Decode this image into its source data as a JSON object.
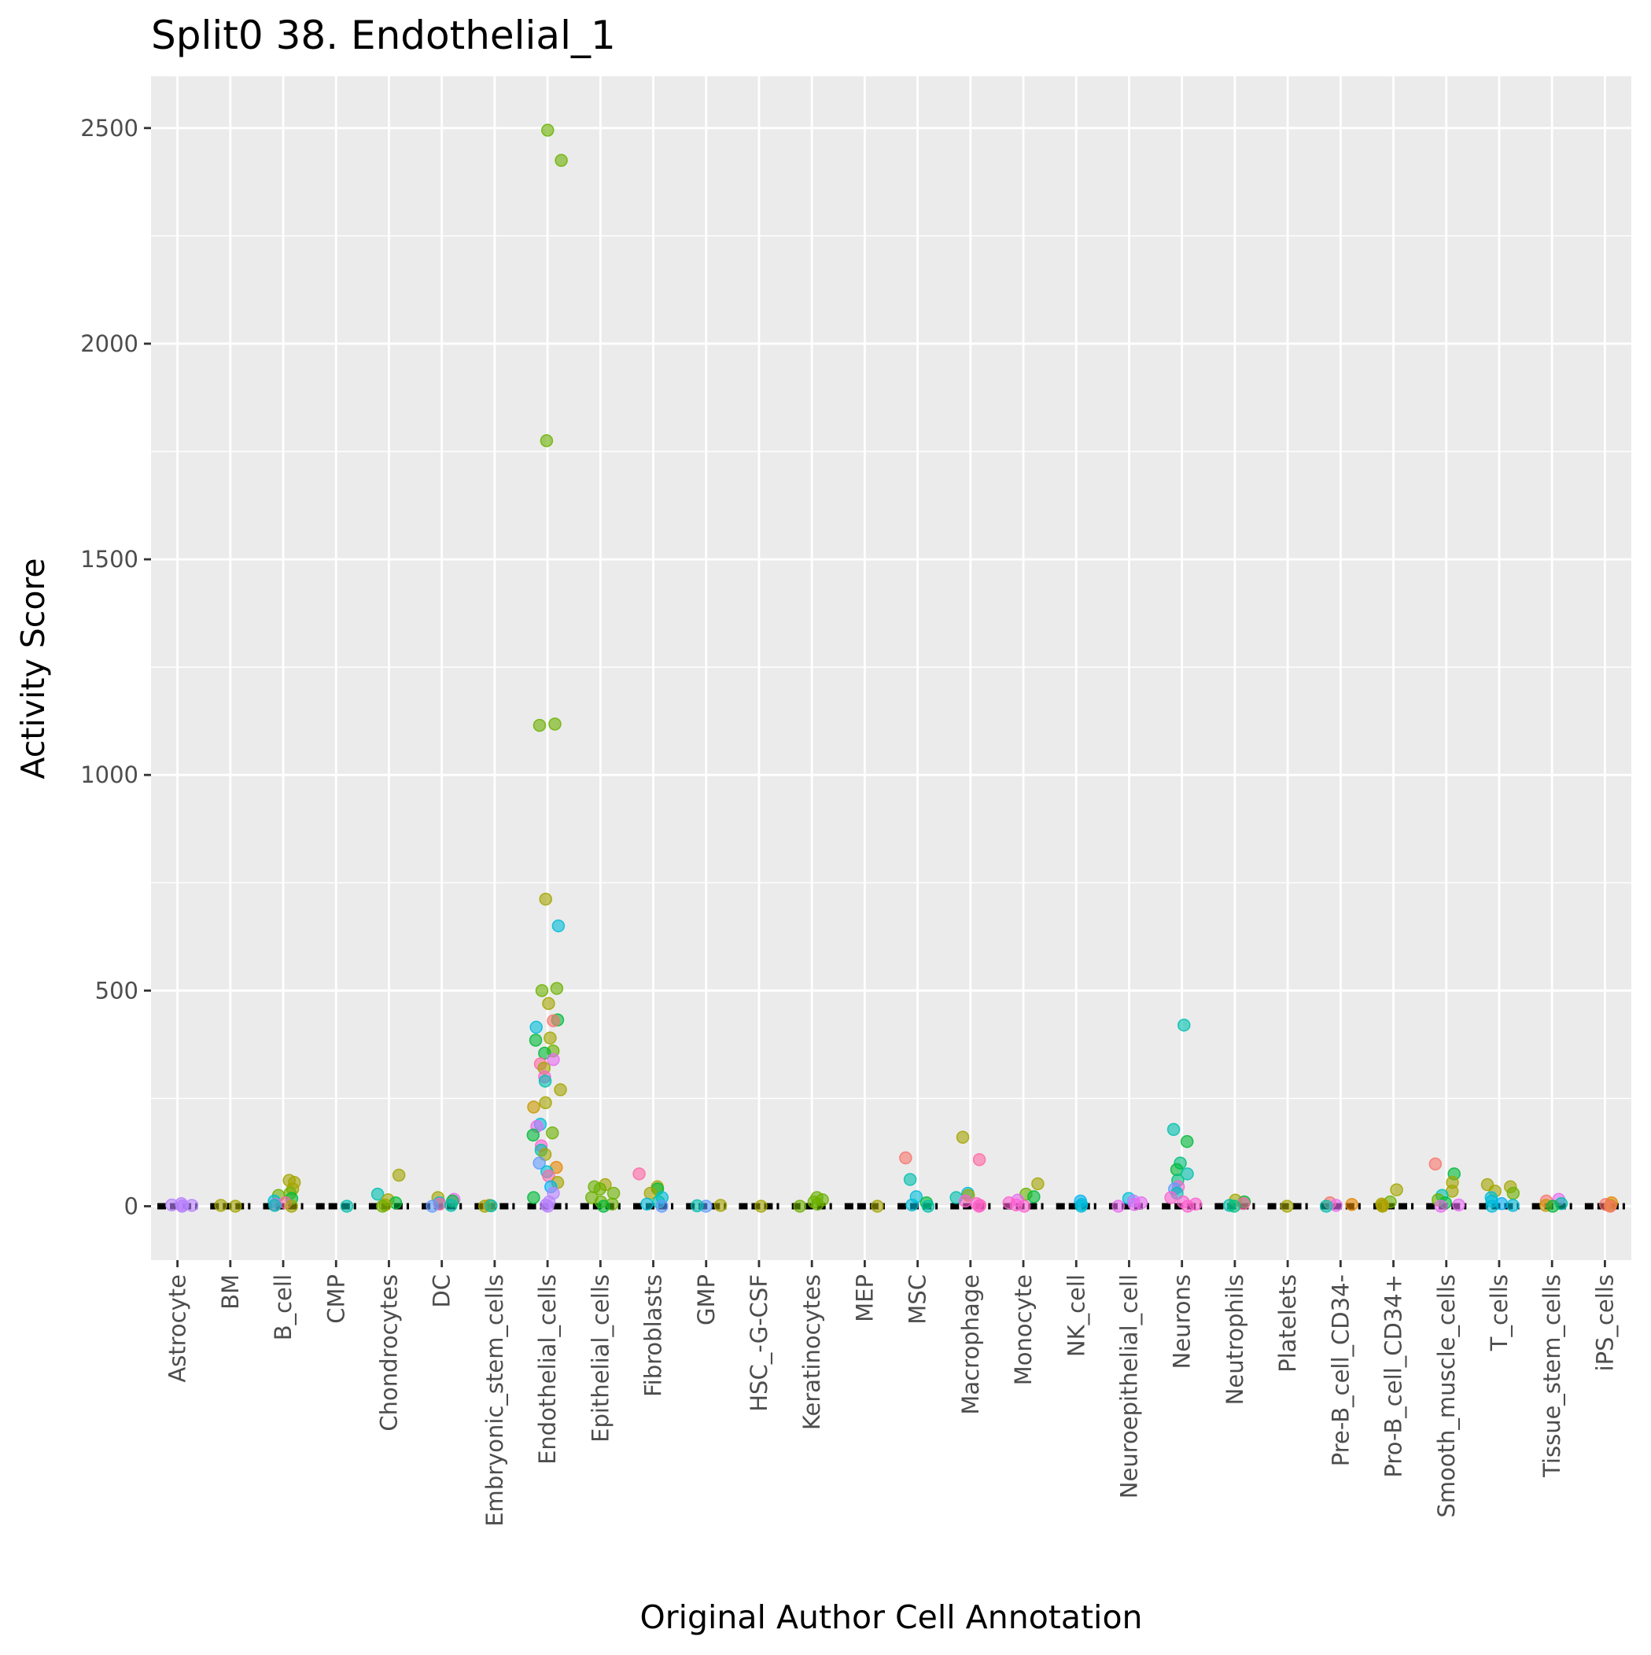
{
  "chart_data": {
    "type": "scatter",
    "title": "Split0 38. Endothelial_1",
    "xlabel": "Original Author Cell Annotation",
    "ylabel": "Activity Score",
    "ylim": [
      -125,
      2620
    ],
    "y_ticks": [
      0,
      500,
      1000,
      1500,
      2000,
      2500
    ],
    "y_tick_labels": [
      "0",
      "500",
      "1000",
      "1500",
      "2000",
      "2500"
    ],
    "grid": true,
    "legend": "none",
    "categories": [
      "Astrocyte",
      "BM",
      "B_cell",
      "CMP",
      "Chondrocytes",
      "DC",
      "Embryonic_stem_cells",
      "Endothelial_cells",
      "Epithelial_cells",
      "Fibroblasts",
      "GMP",
      "HSC_-G-CSF",
      "Keratinocytes",
      "MEP",
      "MSC",
      "Macrophage",
      "Monocyte",
      "NK_cell",
      "Neuroepithelial_cell",
      "Neurons",
      "Neutrophils",
      "Platelets",
      "Pre-B_cell_CD34-",
      "Pro-B_cell_CD34+",
      "Smooth_muscle_cells",
      "T_cells",
      "Tissue_stem_cells",
      "iPS_cells"
    ],
    "palette": [
      "#F8766D",
      "#E58700",
      "#C99800",
      "#A3A500",
      "#6BB100",
      "#00BA38",
      "#00BF7D",
      "#00C0AF",
      "#00BCD8",
      "#00B0F6",
      "#619CFF",
      "#B983FF",
      "#E76BF3",
      "#FD61D1",
      "#FF67A4"
    ],
    "points": [
      {
        "category": "Astrocyte",
        "y": 0,
        "color": "#B983FF"
      },
      {
        "category": "Astrocyte",
        "y": 3,
        "color": "#B983FF"
      },
      {
        "category": "Astrocyte",
        "y": 6,
        "color": "#B983FF"
      },
      {
        "category": "Astrocyte",
        "y": 2,
        "color": "#B983FF"
      },
      {
        "category": "Astrocyte",
        "y": 1,
        "color": "#B983FF"
      },
      {
        "category": "BM",
        "y": 0,
        "color": "#A3A500"
      },
      {
        "category": "BM",
        "y": 2,
        "color": "#A3A500"
      },
      {
        "category": "B_cell",
        "y": 55,
        "color": "#A3A500"
      },
      {
        "category": "B_cell",
        "y": 60,
        "color": "#A3A500"
      },
      {
        "category": "B_cell",
        "y": 40,
        "color": "#A3A500"
      },
      {
        "category": "B_cell",
        "y": 30,
        "color": "#6BB100"
      },
      {
        "category": "B_cell",
        "y": 25,
        "color": "#6BB100"
      },
      {
        "category": "B_cell",
        "y": 18,
        "color": "#00BA38"
      },
      {
        "category": "B_cell",
        "y": 12,
        "color": "#00BCD8"
      },
      {
        "category": "B_cell",
        "y": 8,
        "color": "#FF67A4"
      },
      {
        "category": "B_cell",
        "y": 4,
        "color": "#E76BF3"
      },
      {
        "category": "B_cell",
        "y": 2,
        "color": "#00C0AF"
      },
      {
        "category": "B_cell",
        "y": 0,
        "color": "#A3A500"
      },
      {
        "category": "CMP",
        "y": 0,
        "color": "#00C0AF"
      },
      {
        "category": "Chondrocytes",
        "y": 72,
        "color": "#A3A500"
      },
      {
        "category": "Chondrocytes",
        "y": 28,
        "color": "#00C0AF"
      },
      {
        "category": "Chondrocytes",
        "y": 15,
        "color": "#A3A500"
      },
      {
        "category": "Chondrocytes",
        "y": 8,
        "color": "#00BA38"
      },
      {
        "category": "Chondrocytes",
        "y": 3,
        "color": "#A3A500"
      },
      {
        "category": "Chondrocytes",
        "y": 0,
        "color": "#6BB100"
      },
      {
        "category": "DC",
        "y": 20,
        "color": "#A3A500"
      },
      {
        "category": "DC",
        "y": 16,
        "color": "#E76BF3"
      },
      {
        "category": "DC",
        "y": 12,
        "color": "#00BA38"
      },
      {
        "category": "DC",
        "y": 8,
        "color": "#00BCD8"
      },
      {
        "category": "DC",
        "y": 5,
        "color": "#FF67A4"
      },
      {
        "category": "DC",
        "y": 2,
        "color": "#00C0AF"
      },
      {
        "category": "DC",
        "y": 0,
        "color": "#619CFF"
      },
      {
        "category": "Embryonic_stem_cells",
        "y": 0,
        "color": "#A3A500"
      },
      {
        "category": "Embryonic_stem_cells",
        "y": 2,
        "color": "#C99800"
      },
      {
        "category": "Embryonic_stem_cells",
        "y": 1,
        "color": "#00C0AF"
      },
      {
        "category": "Endothelial_cells",
        "y": 2495,
        "color": "#6BB100"
      },
      {
        "category": "Endothelial_cells",
        "y": 2425,
        "color": "#6BB100"
      },
      {
        "category": "Endothelial_cells",
        "y": 1775,
        "color": "#6BB100"
      },
      {
        "category": "Endothelial_cells",
        "y": 1118,
        "color": "#6BB100"
      },
      {
        "category": "Endothelial_cells",
        "y": 1115,
        "color": "#6BB100"
      },
      {
        "category": "Endothelial_cells",
        "y": 712,
        "color": "#A3A500"
      },
      {
        "category": "Endothelial_cells",
        "y": 650,
        "color": "#00BCD8"
      },
      {
        "category": "Endothelial_cells",
        "y": 505,
        "color": "#6BB100"
      },
      {
        "category": "Endothelial_cells",
        "y": 500,
        "color": "#6BB100"
      },
      {
        "category": "Endothelial_cells",
        "y": 470,
        "color": "#A3A500"
      },
      {
        "category": "Endothelial_cells",
        "y": 432,
        "color": "#00BA38"
      },
      {
        "category": "Endothelial_cells",
        "y": 430,
        "color": "#F8766D"
      },
      {
        "category": "Endothelial_cells",
        "y": 415,
        "color": "#00BCD8"
      },
      {
        "category": "Endothelial_cells",
        "y": 390,
        "color": "#A3A500"
      },
      {
        "category": "Endothelial_cells",
        "y": 385,
        "color": "#00BA38"
      },
      {
        "category": "Endothelial_cells",
        "y": 360,
        "color": "#6BB100"
      },
      {
        "category": "Endothelial_cells",
        "y": 355,
        "color": "#00BA38"
      },
      {
        "category": "Endothelial_cells",
        "y": 340,
        "color": "#E76BF3"
      },
      {
        "category": "Endothelial_cells",
        "y": 330,
        "color": "#FF67A4"
      },
      {
        "category": "Endothelial_cells",
        "y": 320,
        "color": "#A3A500"
      },
      {
        "category": "Endothelial_cells",
        "y": 300,
        "color": "#FD61D1"
      },
      {
        "category": "Endothelial_cells",
        "y": 290,
        "color": "#00C0AF"
      },
      {
        "category": "Endothelial_cells",
        "y": 270,
        "color": "#A3A500"
      },
      {
        "category": "Endothelial_cells",
        "y": 240,
        "color": "#A3A500"
      },
      {
        "category": "Endothelial_cells",
        "y": 230,
        "color": "#C99800"
      },
      {
        "category": "Endothelial_cells",
        "y": 190,
        "color": "#00BCD8"
      },
      {
        "category": "Endothelial_cells",
        "y": 185,
        "color": "#E76BF3"
      },
      {
        "category": "Endothelial_cells",
        "y": 170,
        "color": "#6BB100"
      },
      {
        "category": "Endothelial_cells",
        "y": 165,
        "color": "#00BA38"
      },
      {
        "category": "Endothelial_cells",
        "y": 140,
        "color": "#FD61D1"
      },
      {
        "category": "Endothelial_cells",
        "y": 130,
        "color": "#00C0AF"
      },
      {
        "category": "Endothelial_cells",
        "y": 120,
        "color": "#A3A500"
      },
      {
        "category": "Endothelial_cells",
        "y": 100,
        "color": "#619CFF"
      },
      {
        "category": "Endothelial_cells",
        "y": 90,
        "color": "#E58700"
      },
      {
        "category": "Endothelial_cells",
        "y": 80,
        "color": "#00BCD8"
      },
      {
        "category": "Endothelial_cells",
        "y": 70,
        "color": "#FF67A4"
      },
      {
        "category": "Endothelial_cells",
        "y": 55,
        "color": "#A3A500"
      },
      {
        "category": "Endothelial_cells",
        "y": 45,
        "color": "#00B0F6"
      },
      {
        "category": "Endothelial_cells",
        "y": 30,
        "color": "#B983FF"
      },
      {
        "category": "Endothelial_cells",
        "y": 20,
        "color": "#00BA38"
      },
      {
        "category": "Endothelial_cells",
        "y": 10,
        "color": "#B983FF"
      },
      {
        "category": "Endothelial_cells",
        "y": 3,
        "color": "#B983FF"
      },
      {
        "category": "Endothelial_cells",
        "y": 0,
        "color": "#B983FF"
      },
      {
        "category": "Epithelial_cells",
        "y": 50,
        "color": "#A3A500"
      },
      {
        "category": "Epithelial_cells",
        "y": 45,
        "color": "#6BB100"
      },
      {
        "category": "Epithelial_cells",
        "y": 40,
        "color": "#6BB100"
      },
      {
        "category": "Epithelial_cells",
        "y": 30,
        "color": "#6BB100"
      },
      {
        "category": "Epithelial_cells",
        "y": 20,
        "color": "#6BB100"
      },
      {
        "category": "Epithelial_cells",
        "y": 10,
        "color": "#6BB100"
      },
      {
        "category": "Epithelial_cells",
        "y": 5,
        "color": "#6BB100"
      },
      {
        "category": "Epithelial_cells",
        "y": 0,
        "color": "#00BA38"
      },
      {
        "category": "Fibroblasts",
        "y": 75,
        "color": "#FF67A4"
      },
      {
        "category": "Fibroblasts",
        "y": 45,
        "color": "#A3A500"
      },
      {
        "category": "Fibroblasts",
        "y": 40,
        "color": "#00BA38"
      },
      {
        "category": "Fibroblasts",
        "y": 30,
        "color": "#A3A500"
      },
      {
        "category": "Fibroblasts",
        "y": 20,
        "color": "#00BCD8"
      },
      {
        "category": "Fibroblasts",
        "y": 10,
        "color": "#00C0AF"
      },
      {
        "category": "Fibroblasts",
        "y": 5,
        "color": "#00BCD8"
      },
      {
        "category": "Fibroblasts",
        "y": 0,
        "color": "#619CFF"
      },
      {
        "category": "GMP",
        "y": 2,
        "color": "#A3A500"
      },
      {
        "category": "GMP",
        "y": 0,
        "color": "#619CFF"
      },
      {
        "category": "GMP",
        "y": 1,
        "color": "#00C0AF"
      },
      {
        "category": "HSC_-G-CSF",
        "y": 0,
        "color": "#A3A500"
      },
      {
        "category": "Keratinocytes",
        "y": 20,
        "color": "#6BB100"
      },
      {
        "category": "Keratinocytes",
        "y": 15,
        "color": "#6BB100"
      },
      {
        "category": "Keratinocytes",
        "y": 10,
        "color": "#6BB100"
      },
      {
        "category": "Keratinocytes",
        "y": 5,
        "color": "#6BB100"
      },
      {
        "category": "Keratinocytes",
        "y": 0,
        "color": "#6BB100"
      },
      {
        "category": "MEP",
        "y": 0,
        "color": "#A3A500"
      },
      {
        "category": "MSC",
        "y": 112,
        "color": "#F8766D"
      },
      {
        "category": "MSC",
        "y": 62,
        "color": "#00C0AF"
      },
      {
        "category": "MSC",
        "y": 22,
        "color": "#00BCD8"
      },
      {
        "category": "MSC",
        "y": 8,
        "color": "#00BA38"
      },
      {
        "category": "MSC",
        "y": 3,
        "color": "#00BCD8"
      },
      {
        "category": "MSC",
        "y": 0,
        "color": "#00C0AF"
      },
      {
        "category": "Macrophage",
        "y": 160,
        "color": "#A3A500"
      },
      {
        "category": "Macrophage",
        "y": 108,
        "color": "#FF67A4"
      },
      {
        "category": "Macrophage",
        "y": 30,
        "color": "#00BCD8"
      },
      {
        "category": "Macrophage",
        "y": 25,
        "color": "#A3A500"
      },
      {
        "category": "Macrophage",
        "y": 20,
        "color": "#00C0AF"
      },
      {
        "category": "Macrophage",
        "y": 12,
        "color": "#FD61D1"
      },
      {
        "category": "Macrophage",
        "y": 6,
        "color": "#FD61D1"
      },
      {
        "category": "Macrophage",
        "y": 2,
        "color": "#FF67A4"
      },
      {
        "category": "Macrophage",
        "y": 0,
        "color": "#FD61D1"
      },
      {
        "category": "Monocyte",
        "y": 52,
        "color": "#A3A500"
      },
      {
        "category": "Monocyte",
        "y": 28,
        "color": "#6BB100"
      },
      {
        "category": "Monocyte",
        "y": 22,
        "color": "#00BA38"
      },
      {
        "category": "Monocyte",
        "y": 14,
        "color": "#E76BF3"
      },
      {
        "category": "Monocyte",
        "y": 8,
        "color": "#FD61D1"
      },
      {
        "category": "Monocyte",
        "y": 3,
        "color": "#FD61D1"
      },
      {
        "category": "Monocyte",
        "y": 0,
        "color": "#FD61D1"
      },
      {
        "category": "NK_cell",
        "y": 12,
        "color": "#00B0F6"
      },
      {
        "category": "NK_cell",
        "y": 4,
        "color": "#00BCD8"
      },
      {
        "category": "NK_cell",
        "y": 0,
        "color": "#00BCD8"
      },
      {
        "category": "Neuroepithelial_cell",
        "y": 18,
        "color": "#00BCD8"
      },
      {
        "category": "Neuroepithelial_cell",
        "y": 12,
        "color": "#B983FF"
      },
      {
        "category": "Neuroepithelial_cell",
        "y": 8,
        "color": "#E76BF3"
      },
      {
        "category": "Neuroepithelial_cell",
        "y": 4,
        "color": "#E76BF3"
      },
      {
        "category": "Neuroepithelial_cell",
        "y": 0,
        "color": "#E76BF3"
      },
      {
        "category": "Neurons",
        "y": 420,
        "color": "#00C0AF"
      },
      {
        "category": "Neurons",
        "y": 178,
        "color": "#00C0AF"
      },
      {
        "category": "Neurons",
        "y": 150,
        "color": "#00BA38"
      },
      {
        "category": "Neurons",
        "y": 100,
        "color": "#00BF7D"
      },
      {
        "category": "Neurons",
        "y": 85,
        "color": "#00BA38"
      },
      {
        "category": "Neurons",
        "y": 75,
        "color": "#00C0AF"
      },
      {
        "category": "Neurons",
        "y": 60,
        "color": "#00BF7D"
      },
      {
        "category": "Neurons",
        "y": 45,
        "color": "#FD61D1"
      },
      {
        "category": "Neurons",
        "y": 40,
        "color": "#619CFF"
      },
      {
        "category": "Neurons",
        "y": 30,
        "color": "#00C0AF"
      },
      {
        "category": "Neurons",
        "y": 20,
        "color": "#FD61D1"
      },
      {
        "category": "Neurons",
        "y": 10,
        "color": "#FD61D1"
      },
      {
        "category": "Neurons",
        "y": 5,
        "color": "#FD61D1"
      },
      {
        "category": "Neurons",
        "y": 0,
        "color": "#FD61D1"
      },
      {
        "category": "Neutrophils",
        "y": 14,
        "color": "#A3A500"
      },
      {
        "category": "Neutrophils",
        "y": 10,
        "color": "#00BA38"
      },
      {
        "category": "Neutrophils",
        "y": 6,
        "color": "#FF67A4"
      },
      {
        "category": "Neutrophils",
        "y": 2,
        "color": "#00C0AF"
      },
      {
        "category": "Neutrophils",
        "y": 0,
        "color": "#00BF7D"
      },
      {
        "category": "Platelets",
        "y": 0,
        "color": "#A3A500"
      },
      {
        "category": "Pre-B_cell_CD34-",
        "y": 8,
        "color": "#F8766D"
      },
      {
        "category": "Pre-B_cell_CD34-",
        "y": 4,
        "color": "#E58700"
      },
      {
        "category": "Pre-B_cell_CD34-",
        "y": 2,
        "color": "#E76BF3"
      },
      {
        "category": "Pre-B_cell_CD34-",
        "y": 0,
        "color": "#00C0AF"
      },
      {
        "category": "Pro-B_cell_CD34+",
        "y": 38,
        "color": "#A3A500"
      },
      {
        "category": "Pro-B_cell_CD34+",
        "y": 10,
        "color": "#6BB100"
      },
      {
        "category": "Pro-B_cell_CD34+",
        "y": 5,
        "color": "#A3A500"
      },
      {
        "category": "Pro-B_cell_CD34+",
        "y": 2,
        "color": "#C99800"
      },
      {
        "category": "Pro-B_cell_CD34+",
        "y": 0,
        "color": "#A3A500"
      },
      {
        "category": "Smooth_muscle_cells",
        "y": 98,
        "color": "#F8766D"
      },
      {
        "category": "Smooth_muscle_cells",
        "y": 75,
        "color": "#00BA38"
      },
      {
        "category": "Smooth_muscle_cells",
        "y": 55,
        "color": "#A3A500"
      },
      {
        "category": "Smooth_muscle_cells",
        "y": 35,
        "color": "#A3A500"
      },
      {
        "category": "Smooth_muscle_cells",
        "y": 25,
        "color": "#00C0AF"
      },
      {
        "category": "Smooth_muscle_cells",
        "y": 15,
        "color": "#6BB100"
      },
      {
        "category": "Smooth_muscle_cells",
        "y": 8,
        "color": "#00BA38"
      },
      {
        "category": "Smooth_muscle_cells",
        "y": 3,
        "color": "#E76BF3"
      },
      {
        "category": "Smooth_muscle_cells",
        "y": 0,
        "color": "#E76BF3"
      },
      {
        "category": "T_cells",
        "y": 50,
        "color": "#A3A500"
      },
      {
        "category": "T_cells",
        "y": 45,
        "color": "#A3A500"
      },
      {
        "category": "T_cells",
        "y": 35,
        "color": "#A3A500"
      },
      {
        "category": "T_cells",
        "y": 30,
        "color": "#6BB100"
      },
      {
        "category": "T_cells",
        "y": 20,
        "color": "#00BCD8"
      },
      {
        "category": "T_cells",
        "y": 12,
        "color": "#00BCD8"
      },
      {
        "category": "T_cells",
        "y": 6,
        "color": "#00B0F6"
      },
      {
        "category": "T_cells",
        "y": 2,
        "color": "#00BCD8"
      },
      {
        "category": "T_cells",
        "y": 0,
        "color": "#00BCD8"
      },
      {
        "category": "Tissue_stem_cells",
        "y": 16,
        "color": "#E76BF3"
      },
      {
        "category": "Tissue_stem_cells",
        "y": 12,
        "color": "#F8766D"
      },
      {
        "category": "Tissue_stem_cells",
        "y": 6,
        "color": "#00C0AF"
      },
      {
        "category": "Tissue_stem_cells",
        "y": 2,
        "color": "#C99800"
      },
      {
        "category": "Tissue_stem_cells",
        "y": 0,
        "color": "#00BA38"
      },
      {
        "category": "iPS_cells",
        "y": 8,
        "color": "#E58700"
      },
      {
        "category": "iPS_cells",
        "y": 4,
        "color": "#F8766D"
      },
      {
        "category": "iPS_cells",
        "y": 2,
        "color": "#C99800"
      },
      {
        "category": "iPS_cells",
        "y": 0,
        "color": "#F8766D"
      }
    ]
  }
}
